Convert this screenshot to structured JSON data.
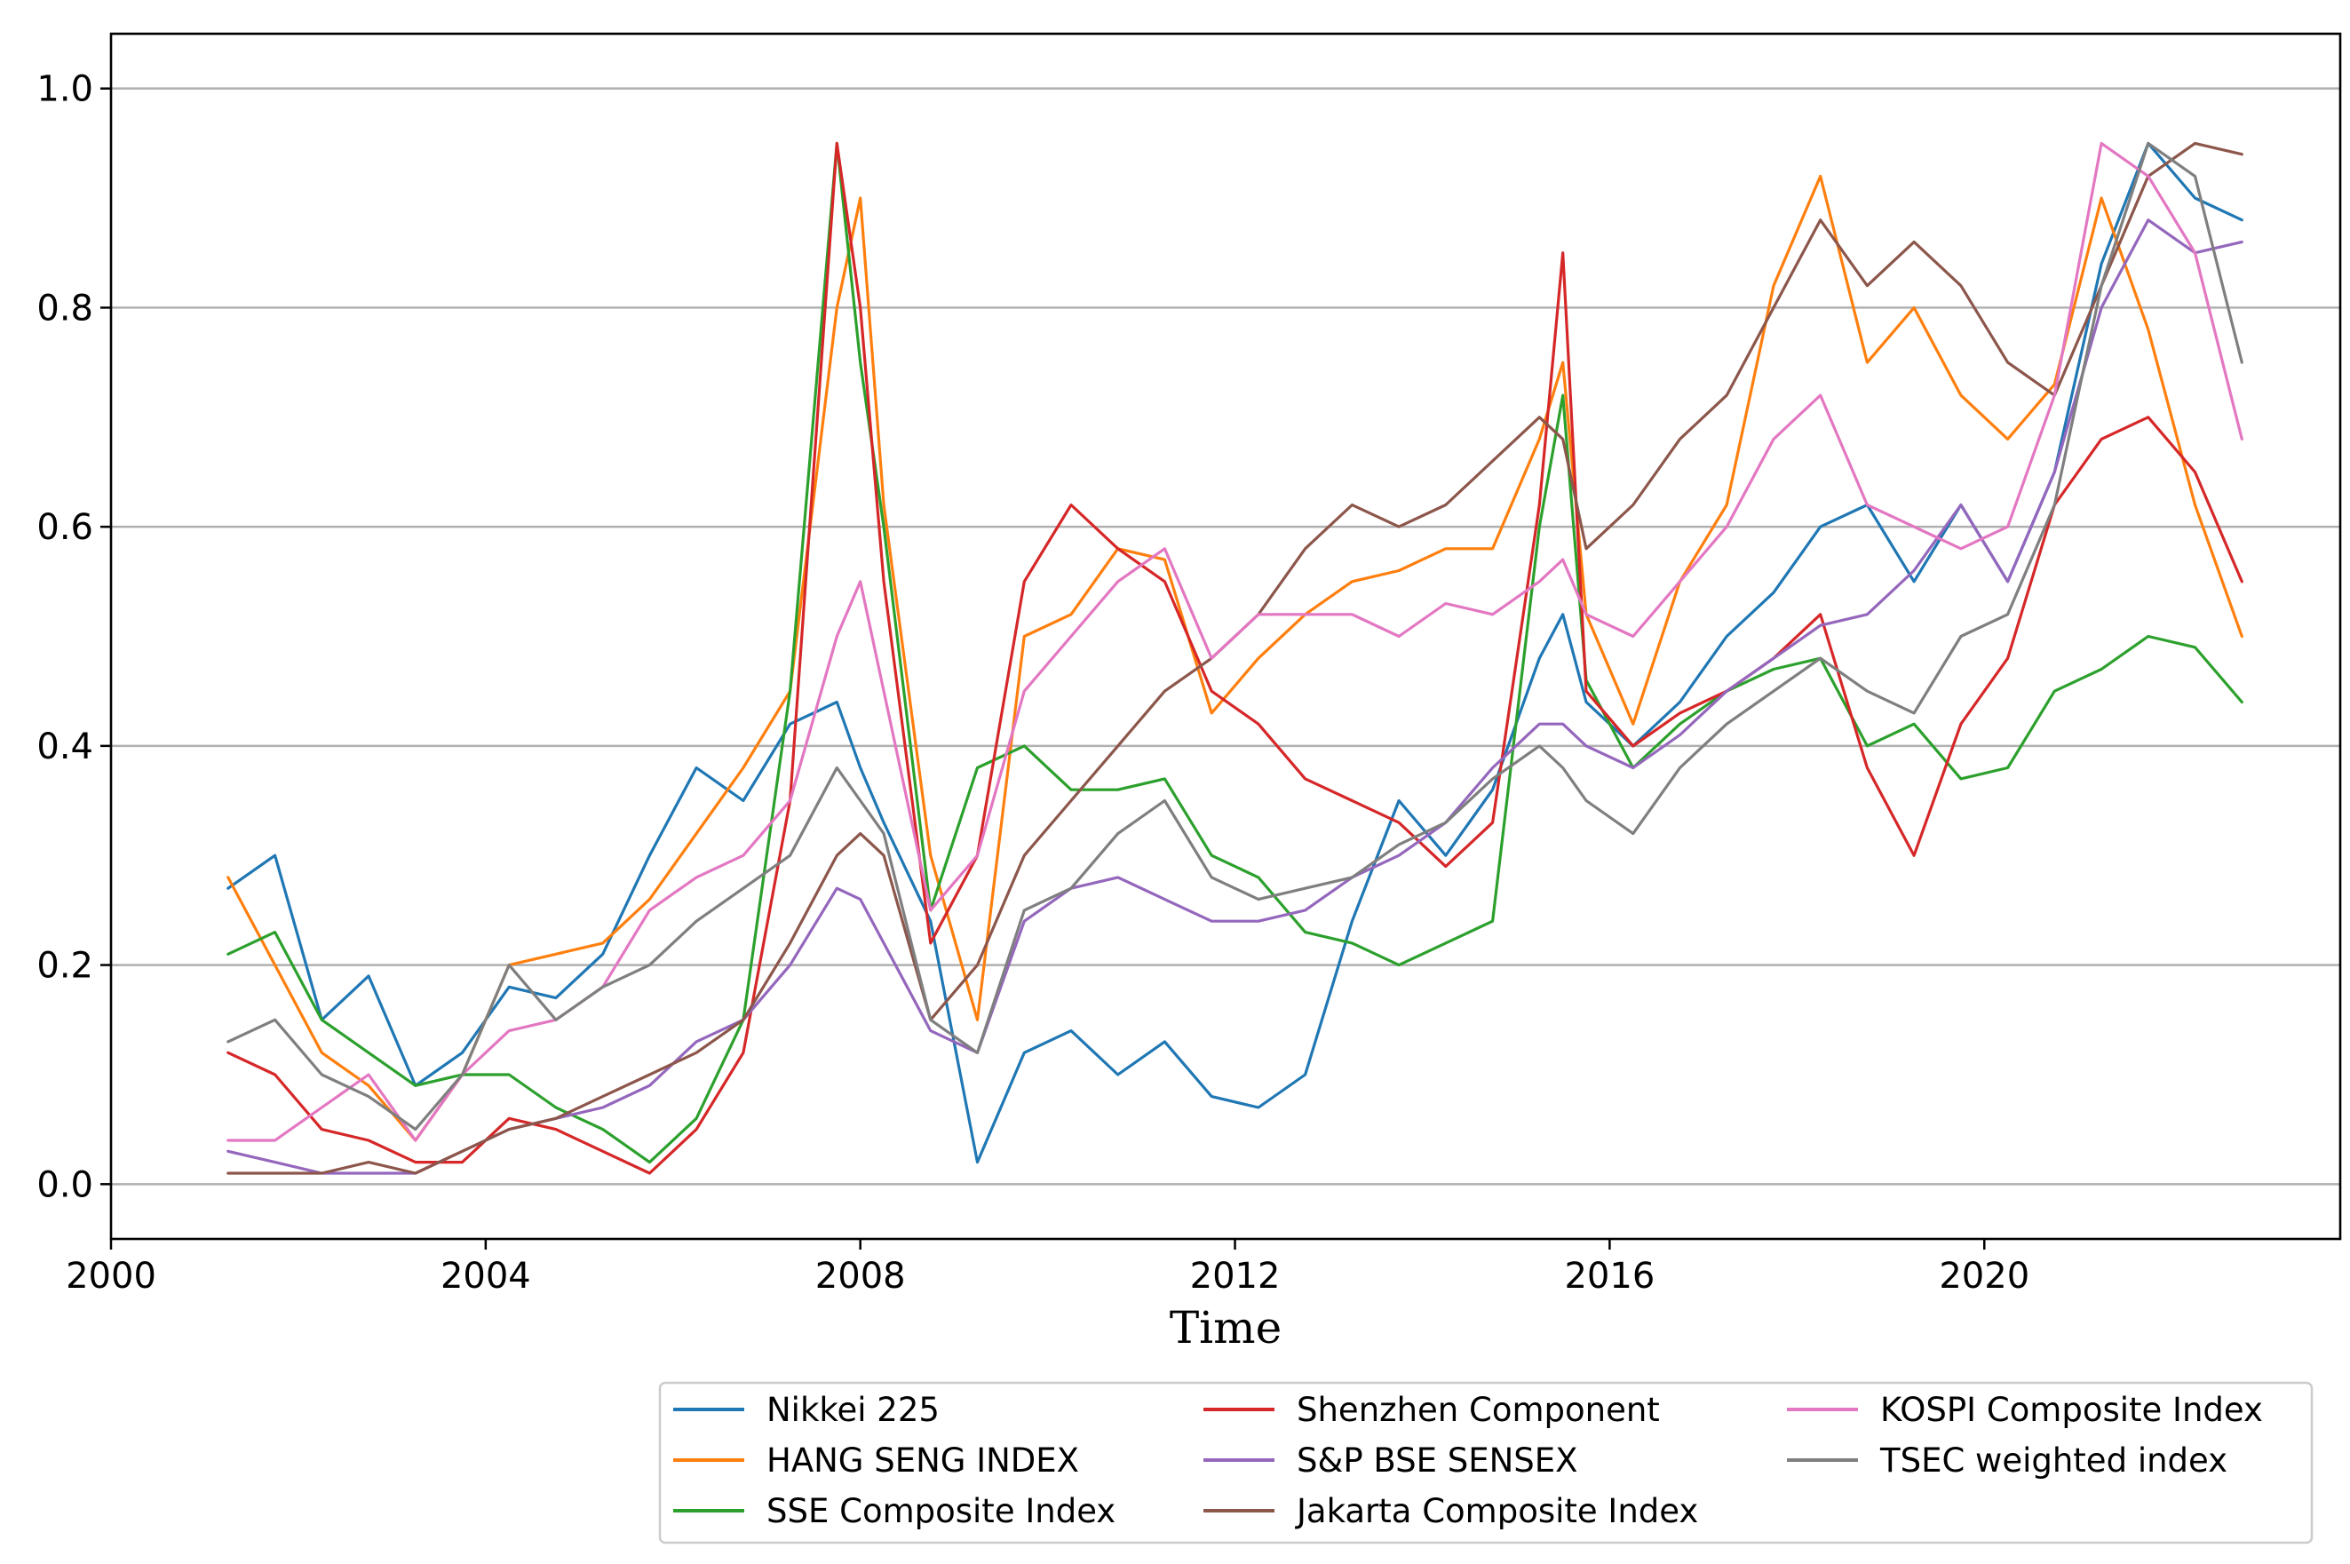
{
  "chart_data": {
    "type": "line",
    "title": "",
    "xlabel": "Time",
    "ylabel": "",
    "xlim": [
      2000.0,
      2023.8
    ],
    "ylim": [
      -0.05,
      1.05
    ],
    "grid": "horizontal",
    "legend_position": "bottom-right, below plot",
    "x_ticks": [
      2000,
      2004,
      2008,
      2012,
      2016,
      2020
    ],
    "x_tick_labels": [
      "2000",
      "2004",
      "2008",
      "2012",
      "2016",
      "2020"
    ],
    "y_ticks": [
      0.0,
      0.2,
      0.4,
      0.6,
      0.8,
      1.0
    ],
    "y_tick_labels": [
      "0.0",
      "0.2",
      "0.4",
      "0.6",
      "0.8",
      "1.0"
    ],
    "x": [
      2001.25,
      2001.75,
      2002.25,
      2002.75,
      2003.25,
      2003.75,
      2004.25,
      2004.75,
      2005.25,
      2005.75,
      2006.25,
      2006.75,
      2007.25,
      2007.75,
      2008.0,
      2008.25,
      2008.75,
      2009.25,
      2009.75,
      2010.25,
      2010.75,
      2011.25,
      2011.75,
      2012.25,
      2012.75,
      2013.25,
      2013.75,
      2014.25,
      2014.75,
      2015.25,
      2015.5,
      2015.75,
      2016.25,
      2016.75,
      2017.25,
      2017.75,
      2018.25,
      2018.75,
      2019.25,
      2019.75,
      2020.25,
      2020.75,
      2021.25,
      2021.75,
      2022.25,
      2022.75
    ],
    "series": [
      {
        "name": "Nikkei 225",
        "color": "#1f77b4",
        "values": [
          0.27,
          0.3,
          0.15,
          0.19,
          0.09,
          0.12,
          0.18,
          0.17,
          0.21,
          0.3,
          0.38,
          0.35,
          0.42,
          0.44,
          0.38,
          0.33,
          0.24,
          0.02,
          0.12,
          0.14,
          0.1,
          0.13,
          0.08,
          0.07,
          0.1,
          0.24,
          0.35,
          0.3,
          0.36,
          0.48,
          0.52,
          0.44,
          0.4,
          0.44,
          0.5,
          0.54,
          0.6,
          0.62,
          0.55,
          0.62,
          0.55,
          0.65,
          0.84,
          0.95,
          0.9,
          0.88
        ]
      },
      {
        "name": "HANG SENG INDEX",
        "color": "#ff7f0e",
        "values": [
          0.28,
          0.2,
          0.12,
          0.09,
          0.04,
          0.1,
          0.2,
          0.21,
          0.22,
          0.26,
          0.32,
          0.38,
          0.45,
          0.8,
          0.9,
          0.62,
          0.3,
          0.15,
          0.5,
          0.52,
          0.58,
          0.57,
          0.43,
          0.48,
          0.52,
          0.55,
          0.56,
          0.58,
          0.58,
          0.68,
          0.75,
          0.52,
          0.42,
          0.55,
          0.62,
          0.82,
          0.92,
          0.75,
          0.8,
          0.72,
          0.68,
          0.73,
          0.9,
          0.78,
          0.62,
          0.5
        ]
      },
      {
        "name": "SSE Composite Index",
        "color": "#2ca02c",
        "values": [
          0.21,
          0.23,
          0.15,
          0.12,
          0.09,
          0.1,
          0.1,
          0.07,
          0.05,
          0.02,
          0.06,
          0.15,
          0.45,
          0.95,
          0.75,
          0.6,
          0.25,
          0.38,
          0.4,
          0.36,
          0.36,
          0.37,
          0.3,
          0.28,
          0.23,
          0.22,
          0.2,
          0.22,
          0.24,
          0.6,
          0.72,
          0.46,
          0.38,
          0.42,
          0.45,
          0.47,
          0.48,
          0.4,
          0.42,
          0.37,
          0.38,
          0.45,
          0.47,
          0.5,
          0.49,
          0.44
        ]
      },
      {
        "name": "Shenzhen Component",
        "color": "#d62728",
        "values": [
          0.12,
          0.1,
          0.05,
          0.04,
          0.02,
          0.02,
          0.06,
          0.05,
          0.03,
          0.01,
          0.05,
          0.12,
          0.35,
          0.95,
          0.8,
          0.55,
          0.22,
          0.3,
          0.55,
          0.62,
          0.58,
          0.55,
          0.45,
          0.42,
          0.37,
          0.35,
          0.33,
          0.29,
          0.33,
          0.62,
          0.85,
          0.45,
          0.4,
          0.43,
          0.45,
          0.48,
          0.52,
          0.38,
          0.3,
          0.42,
          0.48,
          0.62,
          0.68,
          0.7,
          0.65,
          0.55
        ]
      },
      {
        "name": "S&P BSE SENSEX",
        "color": "#9467bd",
        "values": [
          0.03,
          0.02,
          0.01,
          0.01,
          0.01,
          0.03,
          0.05,
          0.06,
          0.07,
          0.09,
          0.13,
          0.15,
          0.2,
          0.27,
          0.26,
          0.22,
          0.14,
          0.12,
          0.24,
          0.27,
          0.28,
          0.26,
          0.24,
          0.24,
          0.25,
          0.28,
          0.3,
          0.33,
          0.38,
          0.42,
          0.42,
          0.4,
          0.38,
          0.41,
          0.45,
          0.48,
          0.51,
          0.52,
          0.56,
          0.62,
          0.55,
          0.65,
          0.8,
          0.88,
          0.85,
          0.86
        ]
      },
      {
        "name": "Jakarta Composite Index",
        "color": "#8c564b",
        "values": [
          0.01,
          0.01,
          0.01,
          0.02,
          0.01,
          0.03,
          0.05,
          0.06,
          0.08,
          0.1,
          0.12,
          0.15,
          0.22,
          0.3,
          0.32,
          0.3,
          0.15,
          0.2,
          0.3,
          0.35,
          0.4,
          0.45,
          0.48,
          0.52,
          0.58,
          0.62,
          0.6,
          0.62,
          0.66,
          0.7,
          0.68,
          0.58,
          0.62,
          0.68,
          0.72,
          0.8,
          0.88,
          0.82,
          0.86,
          0.82,
          0.75,
          0.72,
          0.82,
          0.92,
          0.95,
          0.94
        ]
      },
      {
        "name": "KOSPI Composite Index",
        "color": "#e377c2",
        "values": [
          0.04,
          0.04,
          0.07,
          0.1,
          0.04,
          0.1,
          0.14,
          0.15,
          0.18,
          0.25,
          0.28,
          0.3,
          0.35,
          0.5,
          0.55,
          0.45,
          0.25,
          0.3,
          0.45,
          0.5,
          0.55,
          0.58,
          0.48,
          0.52,
          0.52,
          0.52,
          0.5,
          0.53,
          0.52,
          0.55,
          0.57,
          0.52,
          0.5,
          0.55,
          0.6,
          0.68,
          0.72,
          0.62,
          0.6,
          0.58,
          0.6,
          0.72,
          0.95,
          0.92,
          0.85,
          0.68
        ]
      },
      {
        "name": "TSEC weighted index",
        "color": "#7f7f7f",
        "values": [
          0.13,
          0.15,
          0.1,
          0.08,
          0.05,
          0.1,
          0.2,
          0.15,
          0.18,
          0.2,
          0.24,
          0.27,
          0.3,
          0.38,
          0.35,
          0.32,
          0.15,
          0.12,
          0.25,
          0.27,
          0.32,
          0.35,
          0.28,
          0.26,
          0.27,
          0.28,
          0.31,
          0.33,
          0.37,
          0.4,
          0.38,
          0.35,
          0.32,
          0.38,
          0.42,
          0.45,
          0.48,
          0.45,
          0.43,
          0.5,
          0.52,
          0.62,
          0.82,
          0.95,
          0.92,
          0.75
        ]
      }
    ]
  }
}
